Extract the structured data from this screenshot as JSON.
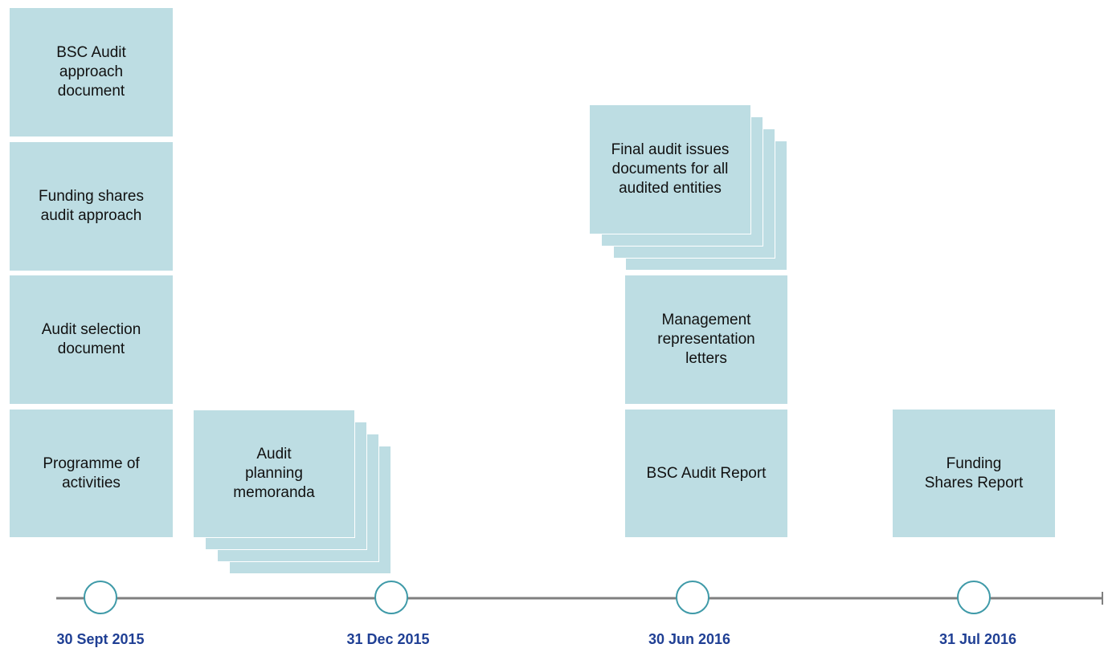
{
  "milestones": [
    {
      "date": "30 Sept 2015",
      "documents": [
        {
          "lines": [
            "BSC Audit",
            "approach",
            "document"
          ]
        },
        {
          "lines": [
            "Funding shares",
            "audit approach"
          ]
        },
        {
          "lines": [
            "Audit selection",
            "document"
          ]
        },
        {
          "lines": [
            "Programme of",
            "activities"
          ]
        }
      ]
    },
    {
      "date": "31 Dec 2015",
      "documents": [
        {
          "lines": [
            "Audit",
            "planning",
            "memoranda"
          ]
        }
      ]
    },
    {
      "date": "30 Jun 2016",
      "documents": [
        {
          "lines": [
            "Final audit issues",
            "documents for all",
            "audited entities"
          ]
        },
        {
          "lines": [
            "Management",
            "representation",
            "letters"
          ]
        },
        {
          "lines": [
            "BSC Audit Report"
          ]
        }
      ]
    },
    {
      "date": "31 Jul 2016",
      "documents": [
        {
          "lines": [
            "Funding",
            "Shares Report"
          ]
        }
      ]
    }
  ]
}
